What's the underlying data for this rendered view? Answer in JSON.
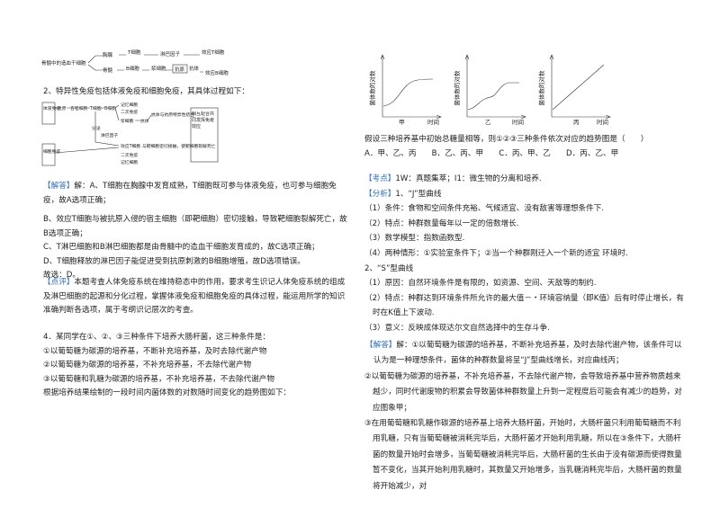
{
  "left": {
    "diagram1": {
      "source": "骨髓中的造血干细胞",
      "top": [
        "胸腺",
        "T细胞",
        "淋巴因子",
        "效应T细胞"
      ],
      "bottom": [
        "骨髓",
        "B细胞",
        "浆细胞",
        "抗原",
        "抗体",
        "效应B细胞"
      ]
    },
    "heading2": "2、特异性免疫包括体液免疫和细胞免疫，其具体过程如下：",
    "diagram2": {
      "humoral": "体液免疫",
      "cellular": "细胞免疫",
      "antigen": "抗原",
      "phagocyte": "吞噬细胞",
      "t_cell": "T细胞",
      "b_cell": "B细胞",
      "memory": "记忆细胞",
      "secondary": "二次免疫",
      "plasma": "浆细胞",
      "antibody": "抗体",
      "binding": "抗体与抗原特异性结合",
      "cooperate": "相互配合共同发挥免疫效应",
      "effector_t": "效应T细胞",
      "contact": "与靶细胞密切接触，使靶细胞裂解死亡",
      "lymphokine": "淋巴因子",
      "secrete": "分泌",
      "memory2": "记忆细胞",
      "secondary2": "二次免疫"
    },
    "solution": {
      "tag": "【解答】",
      "items": [
        "解：A、T细胞在胸腺中发育成熟，T细胞既可参与体液免疫，也可参与细胞免疫，故A选项正确；",
        "B、效应T细胞与被抗原入侵的宿主细胞（即靶细胞）密切接触，导致靶细胞裂解死亡，故B选项正确；",
        "C、T淋巴细胞和B淋巴细胞都是由骨髓中的造血干细胞发育成的，故C选项正确；",
        "D、T细胞释放的淋巴因子能促进受到抗原刺激的B细胞增殖，故D选项错误。",
        "故选：D。"
      ]
    },
    "comment": {
      "tag": "【点评】",
      "text": "本题考查人体免疫系统在维持稳态中的作用，要求考生识记人体免疫系统的组成及淋巴细胞的起源和分化过程，掌握体液免疫和细胞免疫的具体过程，能运用所学的知识准确判断各选项，属于考纲识记层次的考查。"
    },
    "question4": {
      "stem": "4．某同学在①、②、③三种条件下培养大肠杆菌，这三种条件是：",
      "conditions": [
        "①以葡萄糖为碳源的培养基，不断补充培养基，及时去除代谢产物",
        "②以葡萄糖为碳源的培养基，不补充培养基，不去除代谢产物",
        "③以葡萄糖和乳糖为碳源的培养基，不补充培养基，不去除代谢产物"
      ],
      "lead": "根据培养结果绘制的一段时间内菌体数的对数随时间变化的趋势图如下："
    }
  },
  "right": {
    "graphs": {
      "y_label": "菌体数的对数",
      "x_label": "时间",
      "captions": [
        "甲",
        "乙",
        "丙"
      ]
    },
    "question": "假设三种培养基中初始总糖量相等，则①②③三种条件依次对应的趋势图是（　　）",
    "options": "A．甲、乙、丙　　B．乙、丙、甲　　C．丙、甲、乙　　D．丙、乙、甲",
    "kaodian": {
      "tag": "【考点】",
      "text": "1W：真题集萃；I1：微生物的分离和培养."
    },
    "analysis": {
      "tag": "【分析】",
      "text": "1、“J”型曲线"
    },
    "analysis_items": [
      "（1）条件：食物和空间条件充裕、气候适宜、没有敌害等理想条件下.",
      "（2）特点：种群数量每年以一定的倍数增长.",
      "（3）数学模型：指数函数型.",
      "（4）两种情形：①实验室条件下；②当一个种群刚迁入一个新的适宜 环境时.",
      "2、“S”型曲线",
      "（1）原因：自然环境条件是有限的，如资源、空间、天敌等的制约.",
      "（2）特点：种群达到环境条件所允许的最大值－・环境容纳量（即K值）后有时停止增长，有时在K值上下波动.",
      "（3）意义：反映成体现达尔文自然选择中的生存斗争."
    ],
    "solution": {
      "tag": "【解答】",
      "text": "解：①以葡萄糖为碳源的培养基，不断补充培养基，及时去除代谢产物，该条件可以认为是一种理想条件，菌体的种群数量将呈“J”型曲线增长，对应曲线丙；"
    },
    "solution_items": [
      "②以葡萄糖为碳源的培养基，不补充培养基，不去除代谢产物，会导致培养基中营养物质越来越少，同时代谢废物的积累会导致菌体种群数量上升到一定程度后可能会有减少的趋势，对应图象甲；",
      "③在用葡萄糖和乳糖作碳源的培养基上培养大肠杆菌，开始时，大肠杆菌只利用葡萄糖而不利用乳糖，只有当葡萄糖被消耗完毕后，大肠杆菌才开始利用乳糖，所以在③条件下，大肠杆菌的数量开始时会增多，当葡萄糖被消耗完毕后，大肠杆菌的生长由于没有碳源而使得数量暂不变化，当其开始利用乳糖时，其数量又开始增多，当乳糖消耗完毕后，大肠杆菌的数量将开始减少，对"
    ]
  }
}
